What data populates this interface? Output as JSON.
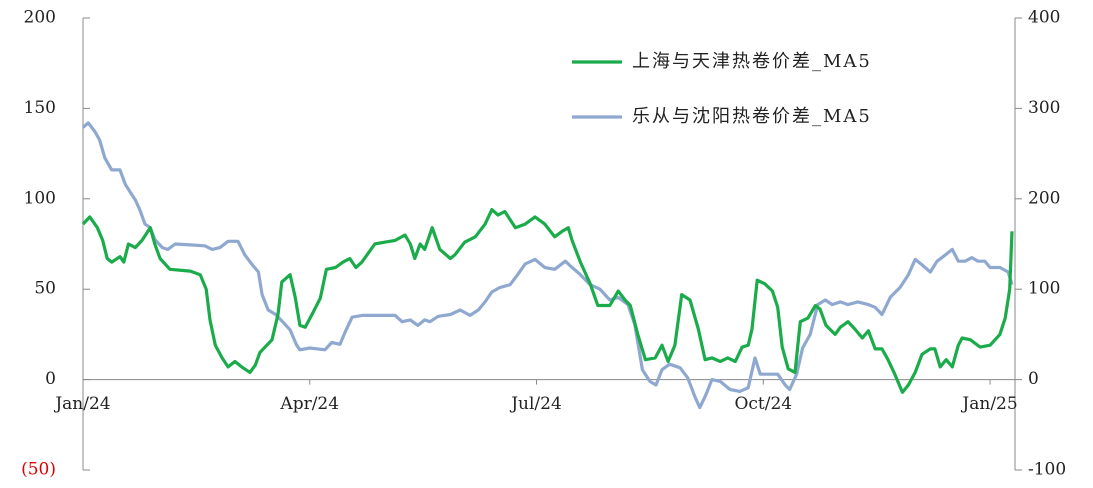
{
  "chart_data": {
    "type": "line",
    "x": [
      0,
      0.07,
      0.09,
      0.16,
      0.19,
      0.22,
      0.26,
      0.29,
      0.32,
      0.38,
      0.49,
      0.54,
      0.56,
      0.6,
      0.62,
      0.69,
      0.75,
      0.78,
      0.82,
      0.89,
      0.95,
      1.02,
      1.05,
      1.12,
      1.15,
      1.22,
      1.42,
      1.55,
      1.61,
      1.63,
      1.68,
      1.71,
      1.75,
      1.81,
      1.84,
      1.92,
      2.01,
      2.05,
      2.1,
      2.14,
      2.21,
      2.24,
      2.28,
      2.32,
      2.34,
      2.37,
      2.45,
      2.5,
      2.55,
      2.58,
      2.63,
      2.64,
      2.74,
      2.81,
      2.82,
      2.87,
      2.94,
      3.0,
      3.03,
      3.14,
      3.2,
      3.22,
      3.29,
      3.34,
      3.4,
      3.44,
      3.47,
      3.53,
      3.56,
      3.61,
      3.69,
      3.86,
      3.93,
      3.99,
      4.13,
      4.22,
      4.26,
      4.33,
      4.39,
      4.43,
      4.46,
      4.52,
      4.59,
      4.62,
      4.7,
      4.72,
      4.86,
      4.92,
      4.99,
      5.05,
      5.12,
      5.19,
      5.23,
      5.32,
      5.41,
      5.49,
      5.52,
      5.58,
      5.65,
      5.72,
      5.75,
      5.85,
      5.98,
      6.11,
      6.24,
      6.34,
      6.38,
      6.42,
      6.47,
      6.58,
      6.71,
      6.81,
      6.84,
      6.97,
      7.08,
      7.17,
      7.21,
      7.24,
      7.3,
      7.34,
      7.4,
      7.44,
      7.5,
      7.57,
      7.58,
      7.66,
      7.74,
      7.76,
      7.83,
      7.9,
      7.92,
      8.0,
      8.03,
      8.1,
      8.14,
      8.16,
      8.23,
      8.24,
      8.32,
      8.43,
      8.53,
      8.56,
      8.63,
      8.69,
      8.72,
      8.8,
      8.85,
      8.89,
      8.92,
      8.96,
      9.02,
      9.06,
      9.12,
      9.19,
      9.25,
      9.29,
      9.33,
      9.35,
      9.42,
      9.44,
      9.49,
      9.52,
      9.59,
      9.62,
      9.69,
      9.72,
      9.75,
      9.82,
      9.83,
      9.91,
      9.95,
      10.02,
      10.12,
      10.21,
      10.25,
      10.31,
      10.39,
      10.48,
      10.57,
      10.65,
      10.68,
      10.74,
      10.81,
      10.84,
      10.92,
      11.01,
      11.1,
      11.21,
      11.27,
      11.3,
      11.34,
      11.41,
      11.42,
      11.5,
      11.58,
      11.63,
      11.67,
      11.74,
      11.76,
      11.84,
      11.87,
      11.93,
      12.0,
      12.13,
      12.2,
      12.24,
      12.26,
      12.29
    ],
    "series": [
      {
        "name": "上海与天津热卷价差_MA5",
        "color": "#1aab4a",
        "axis": "y",
        "values": [
          86,
          null,
          90,
          null,
          84,
          null,
          77,
          null,
          67,
          65,
          68,
          65,
          null,
          75,
          null,
          73,
          null,
          77,
          null,
          84,
          75,
          67,
          null,
          null,
          61,
          null,
          60,
          58,
          null,
          50,
          33,
          null,
          19,
          null,
          12,
          7,
          10,
          null,
          7,
          null,
          4,
          null,
          8,
          null,
          15,
          null,
          null,
          22,
          null,
          36,
          54,
          null,
          58,
          45,
          null,
          30,
          29,
          null,
          36,
          45,
          null,
          61,
          null,
          62,
          null,
          65,
          null,
          67,
          null,
          62,
          65,
          75,
          null,
          76,
          77,
          null,
          80,
          75,
          67,
          null,
          75,
          72,
          null,
          84,
          null,
          72,
          67,
          69,
          null,
          76,
          null,
          79,
          null,
          86,
          94,
          91,
          null,
          93,
          null,
          84,
          null,
          86,
          90,
          86,
          79,
          82,
          null,
          84,
          77,
          65,
          53,
          41,
          null,
          41,
          49,
          44,
          null,
          41,
          null,
          25,
          null,
          11,
          null,
          12,
          null,
          19,
          10,
          null,
          19,
          null,
          47,
          null,
          44,
          null,
          28,
          null,
          11,
          null,
          12,
          10,
          12,
          null,
          10,
          null,
          18,
          19,
          28,
          null,
          55,
          null,
          53,
          null,
          49,
          40,
          18,
          null,
          6,
          null,
          4,
          null,
          32,
          null,
          34,
          null,
          41,
          null,
          39,
          null,
          30,
          null,
          25,
          29,
          32,
          28,
          null,
          23,
          27,
          17,
          17,
          11,
          null,
          3,
          null,
          -7,
          -3,
          4,
          14,
          17,
          17,
          null,
          7,
          null,
          11,
          7,
          19,
          23,
          null,
          22,
          null,
          null,
          18,
          null,
          19,
          25,
          34,
          null,
          50,
          82
        ]
      },
      {
        "name": "乐从与沈阳热卷价差_MA5",
        "color": "#8fa8d0",
        "axis": "y2",
        "values": [
          279,
          284,
          null,
          274,
          null,
          265,
          null,
          245,
          null,
          232,
          232,
          null,
          216,
          null,
          208,
          199,
          188,
          null,
          172,
          168,
          155,
          null,
          146,
          144,
          null,
          150,
          149,
          null,
          148,
          null,
          null,
          144,
          null,
          146,
          null,
          153,
          null,
          153,
          null,
          138,
          null,
          127,
          null,
          119,
          null,
          94,
          77,
          null,
          72,
          null,
          null,
          64,
          55,
          null,
          39,
          33,
          null,
          35,
          null,
          null,
          33,
          null,
          41,
          null,
          39,
          null,
          53,
          null,
          69,
          null,
          71,
          null,
          71,
          null,
          71,
          64,
          null,
          66,
          null,
          60,
          null,
          66,
          64,
          null,
          70,
          null,
          72,
          null,
          77,
          null,
          71,
          null,
          77,
          86,
          97,
          null,
          102,
          null,
          105,
          null,
          116,
          128,
          133,
          124,
          122,
          null,
          131,
          null,
          124,
          116,
          105,
          null,
          100,
          88,
          91,
          null,
          83,
          null,
          61,
          null,
          11,
          null,
          -2,
          null,
          -6,
          11,
          null,
          17,
          null,
          13,
          null,
          2,
          null,
          -20,
          null,
          -31,
          null,
          -17,
          0,
          -2,
          null,
          -11,
          null,
          -13,
          null,
          -9,
          null,
          24,
          null,
          6,
          null,
          6,
          null,
          6,
          null,
          -6,
          null,
          -11,
          null,
          6,
          null,
          35,
          null,
          50,
          null,
          83,
          null,
          88,
          null,
          83,
          null,
          86,
          83,
          null,
          86,
          null,
          83,
          80,
          72,
          null,
          91,
          null,
          102,
          null,
          116,
          133,
          127,
          119,
          null,
          131,
          null,
          138,
          null,
          144,
          131,
          null,
          131,
          null,
          135,
          131,
          null,
          131,
          124,
          124,
          null,
          119,
          null,
          105
        ]
      }
    ],
    "xlim": [
      0,
      12.33
    ],
    "xticks": [
      {
        "value": 0,
        "label": "Jan/24"
      },
      {
        "value": 3,
        "label": "Apr/24"
      },
      {
        "value": 6,
        "label": "Jul/24"
      },
      {
        "value": 9,
        "label": "Oct/24"
      },
      {
        "value": 12,
        "label": "Jan/25"
      }
    ],
    "ylim": [
      -50,
      200
    ],
    "yticks": [
      {
        "value": -50,
        "label": "(50)"
      },
      0,
      50,
      100,
      150,
      200
    ],
    "negative_tick_color": "#e00000",
    "y2lim": [
      -100,
      400
    ],
    "y2ticks": [
      -100,
      0,
      100,
      200,
      300,
      400
    ],
    "legend": "upper right"
  }
}
